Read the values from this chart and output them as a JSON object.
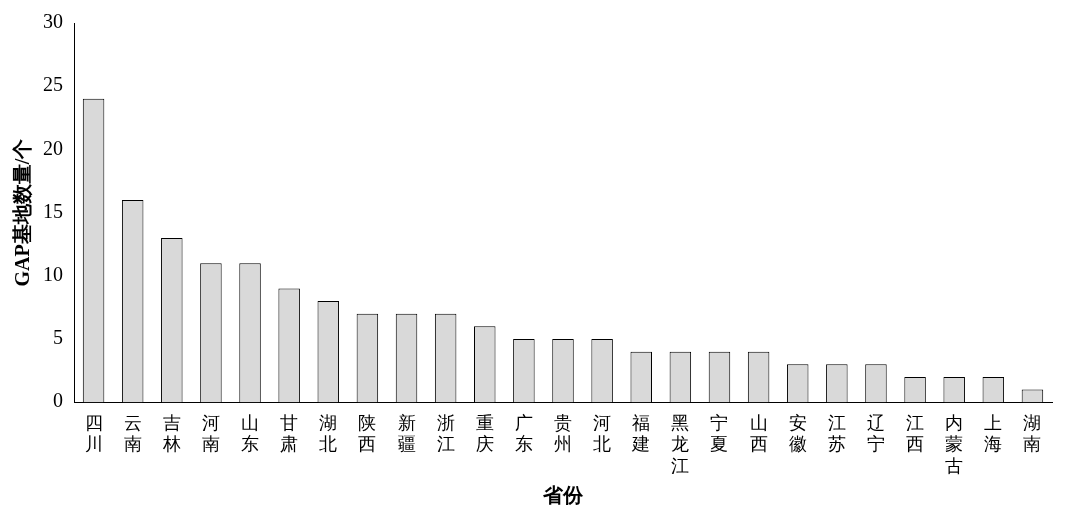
{
  "chart_data": {
    "type": "bar",
    "xlabel": "省份",
    "ylabel": "GAP基地数量/个",
    "categories": [
      "四川",
      "云南",
      "吉林",
      "河南",
      "山东",
      "甘肃",
      "湖北",
      "陕西",
      "新疆",
      "浙江",
      "重庆",
      "广东",
      "贵州",
      "河北",
      "福建",
      "黑龙江",
      "宁夏",
      "山西",
      "安徽",
      "江苏",
      "辽宁",
      "江西",
      "内蒙古",
      "上海",
      "湖南"
    ],
    "values": [
      24,
      16,
      13,
      11,
      11,
      9,
      8,
      7,
      7,
      7,
      6,
      5,
      5,
      5,
      4,
      4,
      4,
      4,
      3,
      3,
      3,
      2,
      2,
      2,
      1
    ],
    "color": "#d9d9d9",
    "ylim": [
      0,
      30
    ],
    "yticks": [
      0,
      5,
      10,
      15,
      20,
      25,
      30
    ],
    "grid": false,
    "legend": false
  }
}
